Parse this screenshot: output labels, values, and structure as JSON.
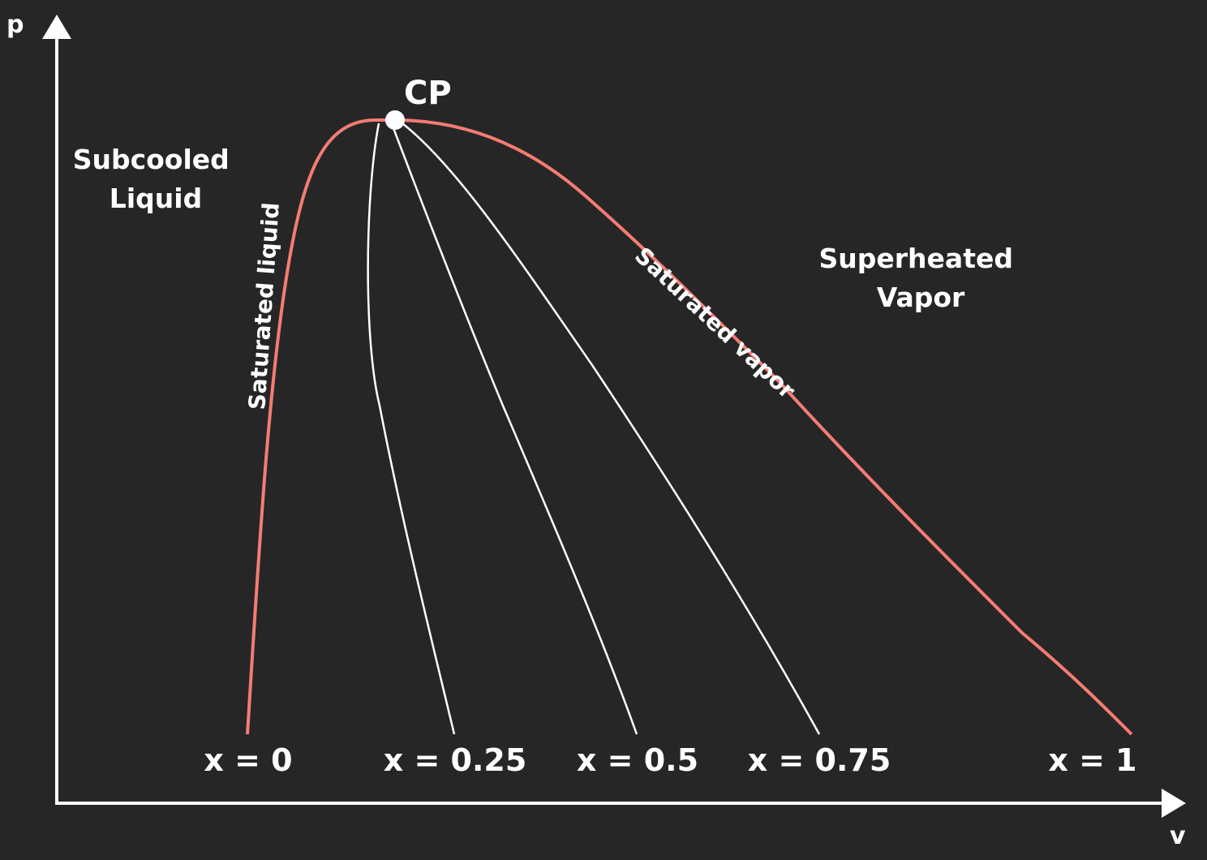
{
  "axes": {
    "y_label": "p",
    "x_label": "v"
  },
  "critical_point": {
    "label": "CP"
  },
  "regions": {
    "subcooled": [
      "Subcooled",
      "Liquid"
    ],
    "superheated": [
      "Superheated",
      "Vapor"
    ]
  },
  "curves": {
    "saturated_liquid": "Saturated liquid",
    "saturated_vapor": "Saturated vapor"
  },
  "quality_lines": [
    {
      "label": "x = 0"
    },
    {
      "label": "x = 0.25"
    },
    {
      "label": "x = 0.5"
    },
    {
      "label": "x = 0.75"
    },
    {
      "label": "x = 1"
    }
  ],
  "colors": {
    "background": "#262626",
    "saturation_dome": "#f47c74",
    "axes": "#ffffff",
    "quality_lines": "#ffffff",
    "text": "#ffffff"
  }
}
